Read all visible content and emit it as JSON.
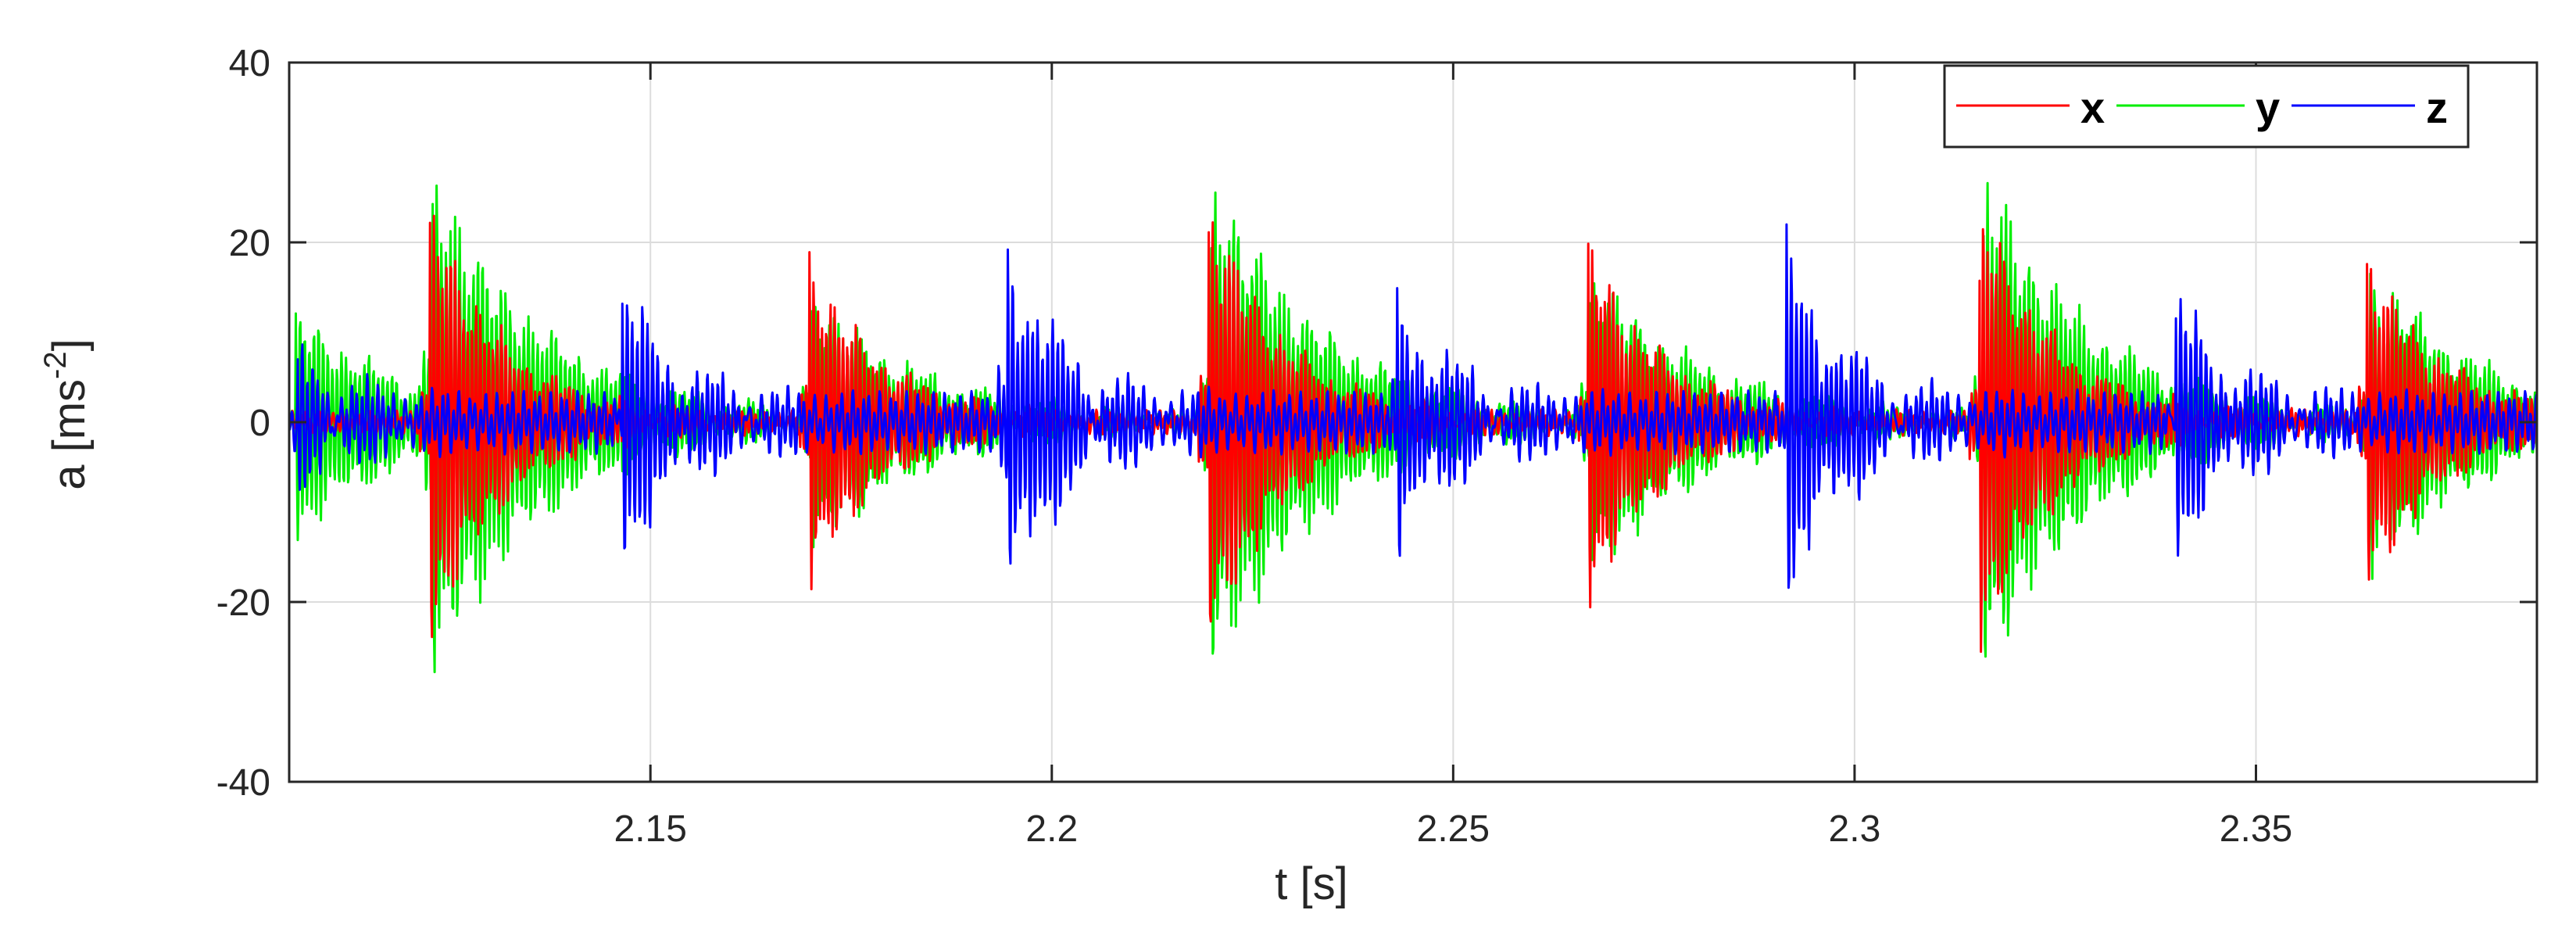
{
  "chart_data": {
    "type": "line",
    "title": "",
    "xlabel": "t [s]",
    "ylabel_main": "a [ms",
    "ylabel_sup": "-2",
    "ylabel_end": "]",
    "xlim": [
      2.105,
      2.385
    ],
    "ylim": [
      -40,
      40
    ],
    "xticks": [
      2.15,
      2.2,
      2.25,
      2.3,
      2.35
    ],
    "xtick_labels": [
      "2.15",
      "2.2",
      "2.25",
      "2.3",
      "2.35"
    ],
    "yticks": [
      -40,
      -20,
      0,
      20,
      40
    ],
    "ytick_labels": [
      "-40",
      "-20",
      "0",
      "20",
      "40"
    ],
    "grid": true,
    "legend_position": "top-right",
    "legend_orientation": "horizontal",
    "series": [
      {
        "name": "x",
        "color": "#ff0000",
        "freq": 1900,
        "decay": 110,
        "base": 0.8,
        "events": [
          {
            "t": 2.1225,
            "amp": 26
          },
          {
            "t": 2.1698,
            "amp": 19
          },
          {
            "t": 2.2195,
            "amp": 27
          },
          {
            "t": 2.2668,
            "amp": 21
          },
          {
            "t": 2.3155,
            "amp": 27
          },
          {
            "t": 2.3638,
            "amp": 20
          }
        ]
      },
      {
        "name": "y",
        "color": "#00ee00",
        "freq": 1750,
        "decay": 75,
        "base": 0.8,
        "events": [
          {
            "t": 2.1058,
            "amp": 13
          },
          {
            "t": 2.1228,
            "amp": 30
          },
          {
            "t": 2.17,
            "amp": 16
          },
          {
            "t": 2.2198,
            "amp": 30
          },
          {
            "t": 2.267,
            "amp": 19
          },
          {
            "t": 2.316,
            "amp": 30
          },
          {
            "t": 2.3642,
            "amp": 19
          }
        ]
      },
      {
        "name": "z",
        "color": "#0000ff",
        "freq": 1600,
        "decay": 140,
        "base": 2.2,
        "events": [
          {
            "t": 2.106,
            "amp": 7
          },
          {
            "t": 2.1465,
            "amp": 15
          },
          {
            "t": 2.1945,
            "amp": 20
          },
          {
            "t": 2.243,
            "amp": 14
          },
          {
            "t": 2.2915,
            "amp": 20
          },
          {
            "t": 2.34,
            "amp": 14
          }
        ]
      }
    ]
  }
}
